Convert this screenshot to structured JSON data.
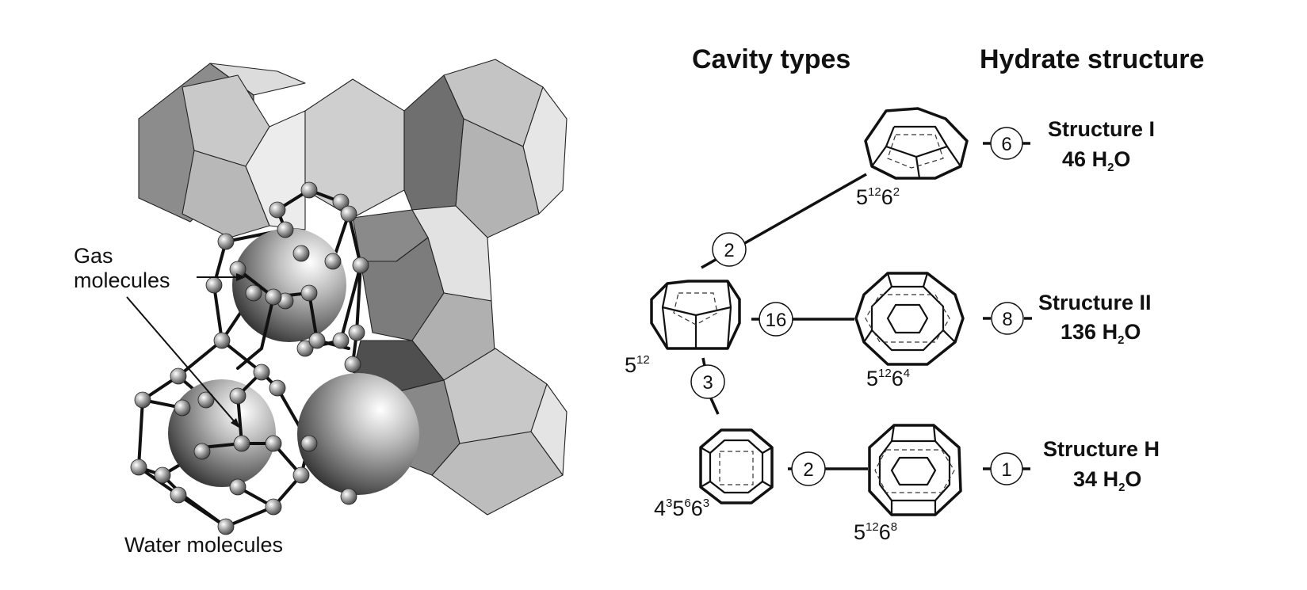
{
  "headers": {
    "cavity_types": "Cavity types",
    "hydrate_structure": "Hydrate structure"
  },
  "left_labels": {
    "gas": [
      "Gas",
      "molecules"
    ],
    "water": "Water molecules"
  },
  "cavities": [
    {
      "id": "c512",
      "base": [
        "5"
      ],
      "sup": [
        "12"
      ]
    },
    {
      "id": "c51262",
      "base": [
        "5",
        "6"
      ],
      "sup": [
        "12",
        "2"
      ]
    },
    {
      "id": "c51264",
      "base": [
        "5",
        "6"
      ],
      "sup": [
        "12",
        "4"
      ]
    },
    {
      "id": "c435663",
      "base": [
        "4",
        "5",
        "6"
      ],
      "sup": [
        "3",
        "6",
        "3"
      ]
    },
    {
      "id": "c51268",
      "base": [
        "5",
        "6"
      ],
      "sup": [
        "12",
        "8"
      ]
    }
  ],
  "link_counts": {
    "to_sI_small": "2",
    "to_sII_small": "16",
    "to_sH_small": "3",
    "sH_medium_to_large": "2"
  },
  "structures": [
    {
      "name": "Structure I",
      "count": "6",
      "water_num": "46",
      "water_pre": "H",
      "water_sub": "2",
      "water_post": "O"
    },
    {
      "name": "Structure II",
      "count": "8",
      "water_num": "136",
      "water_pre": "H",
      "water_sub": "2",
      "water_post": "O"
    },
    {
      "name": "Structure H",
      "count": "1",
      "water_num": "34",
      "water_pre": "H",
      "water_sub": "2",
      "water_post": "O"
    }
  ],
  "colors": {
    "face_light": "#dcdcdc",
    "face_mid": "#b8b8b8",
    "face_dark": "#8c8c8c",
    "face_darker": "#6a6a6a",
    "face_darkest": "#4a4a4a",
    "line": "#111111"
  }
}
